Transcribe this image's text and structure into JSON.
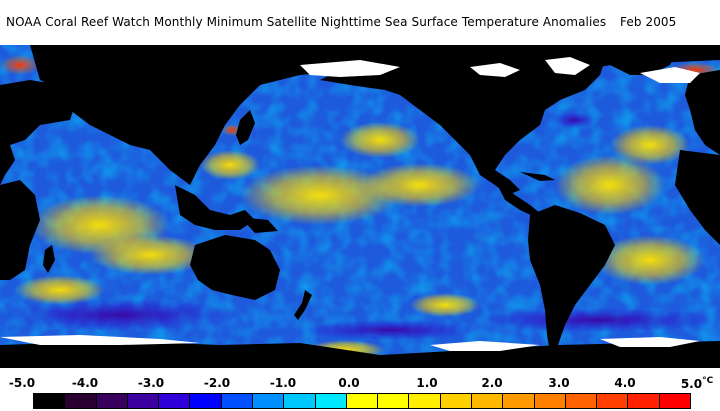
{
  "title": "NOAA Coral Reef Watch Monthly Minimum Satellite Nighttime Sea Surface Temperature Anomalies",
  "date": "Feb 2005",
  "legend": {
    "labels": [
      "-5.0",
      "-4.0",
      "-3.0",
      "-2.0",
      "-1.0",
      "0.0",
      "1.0",
      "2.0",
      "3.0",
      "4.0",
      "5.0"
    ],
    "unit": "°C",
    "colors": [
      "#000000",
      "#2a0030",
      "#3a0060",
      "#3c00a0",
      "#2f00d8",
      "#0000ff",
      "#0050ff",
      "#0090ff",
      "#00c8ff",
      "#00e8ff",
      "#ffff00",
      "#ffff00",
      "#ffee00",
      "#ffd000",
      "#ffb800",
      "#ff9a00",
      "#ff8000",
      "#ff6200",
      "#ff4000",
      "#ff2000",
      "#ff0000"
    ]
  },
  "map": {
    "land_color": "#000000",
    "ice_color": "#ffffff",
    "ocean_base_color": "#1e5adc"
  }
}
